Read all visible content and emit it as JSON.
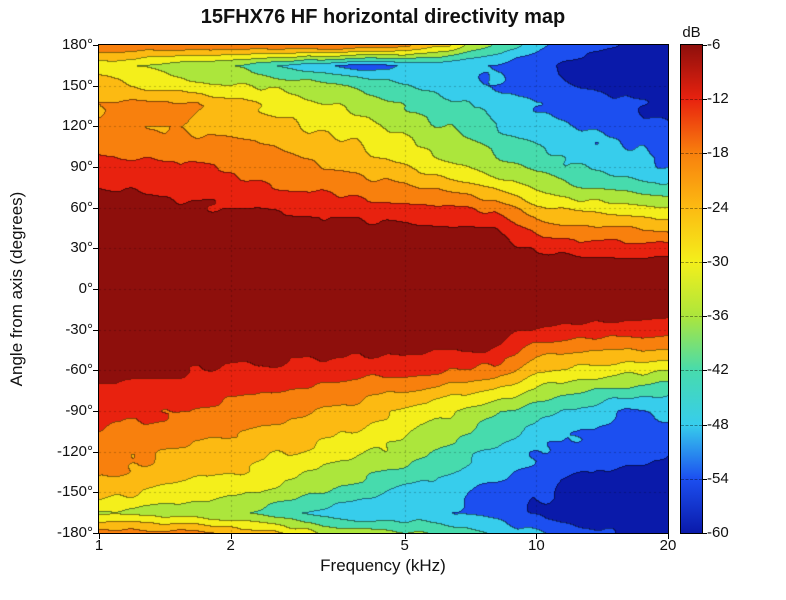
{
  "chart_data": {
    "type": "heatmap",
    "subtype": "filled-contour-directivity-map",
    "title": "15FHX76 HF horizontal directivity map",
    "xlabel": "Frequency (kHz)",
    "ylabel": "Angle from axis (degrees)",
    "colorbar_label": "dB",
    "x_scale": "log",
    "xlim_khz": [
      1,
      20
    ],
    "x_tick_values": [
      1,
      2,
      5,
      10,
      20
    ],
    "x_tick_labels": [
      "1",
      "2",
      "5",
      "10",
      "20"
    ],
    "ylim_deg": [
      -180,
      180
    ],
    "y_tick_values": [
      180,
      150,
      120,
      90,
      60,
      30,
      0,
      -30,
      -60,
      -90,
      -120,
      -150,
      -180
    ],
    "y_tick_labels": [
      "180°",
      "150°",
      "120°",
      "90°",
      "60°",
      "30°",
      "0°",
      "-30°",
      "-60°",
      "-90°",
      "-120°",
      "-150°",
      "-180°"
    ],
    "colorbar_tick_values": [
      -6,
      -12,
      -18,
      -24,
      -30,
      -36,
      -42,
      -48,
      -54,
      -60
    ],
    "colorbar_tick_labels": [
      "-6",
      "-12",
      "-18",
      "-24",
      "-30",
      "-36",
      "-42",
      "-48",
      "-54",
      "-60"
    ],
    "contour_levels_db": [
      -60,
      -54,
      -48,
      -42,
      -36,
      -30,
      -24,
      -18,
      -12,
      -6
    ],
    "band_colors": [
      "#0a1aaa",
      "#1c4ff0",
      "#37cdec",
      "#47dbad",
      "#ace63c",
      "#f4ef1b",
      "#fcba12",
      "#f8800d",
      "#e8220f",
      "#8e0f0c"
    ],
    "grid_dashed": true,
    "gridline_angles_deg": [
      150,
      120,
      90,
      60,
      30,
      0,
      -30,
      -60,
      -90,
      -120,
      -150
    ],
    "gridline_freqs_khz": [
      2,
      5,
      10
    ],
    "noise_amp_db": 1.3,
    "frequencies_khz": [
      1,
      1.26,
      1.6,
      2,
      2.5,
      3.2,
      4,
      5,
      6.3,
      8,
      10,
      12.5,
      16,
      20
    ],
    "angles_deg": [
      180,
      165,
      150,
      135,
      120,
      105,
      90,
      75,
      60,
      45,
      30,
      15,
      0,
      -15,
      -30,
      -45,
      -60,
      -75,
      -90,
      -105,
      -120,
      -135,
      -150,
      -165,
      -180
    ],
    "attenuation_db_by_frequency": [
      [
        -13.5,
        -27,
        -21,
        -18,
        -16.5,
        -12.5,
        -9.5,
        -6.5,
        -3.5,
        -1.5,
        -0.5,
        0,
        0,
        0,
        -0.5,
        -1.5,
        -4,
        -7,
        -10,
        -13,
        -15.5,
        -17.5,
        -21,
        -31,
        -14
      ],
      [
        -13,
        -30,
        -25,
        -15,
        -17.5,
        -14,
        -10.5,
        -7.5,
        -4,
        -1.5,
        -0.5,
        0,
        0,
        0,
        -0.5,
        -2,
        -4.5,
        -8,
        -11,
        -13.5,
        -17,
        -19.5,
        -24,
        -32,
        -15.5
      ],
      [
        -13.5,
        -34,
        -28,
        -16,
        -18.5,
        -15,
        -11.5,
        -8.5,
        -5,
        -2,
        -0.5,
        0,
        0,
        0,
        -1,
        -2.5,
        -5.5,
        -9,
        -12,
        -15.5,
        -19,
        -22,
        -26,
        -33.5,
        -16
      ],
      [
        -14,
        -36,
        -29,
        -21,
        -19.5,
        -16.5,
        -13,
        -9.5,
        -6,
        -2.5,
        -1,
        0,
        0,
        0,
        -1,
        -3,
        -6.5,
        -10,
        -13.5,
        -17,
        -20.5,
        -23.5,
        -29,
        -35,
        -19
      ],
      [
        -13.5,
        -41,
        -31,
        -25,
        -22,
        -18.5,
        -15,
        -11,
        -7,
        -3,
        -1,
        0,
        0,
        0,
        -1.5,
        -3.5,
        -7.5,
        -11.5,
        -15.5,
        -19.5,
        -23,
        -27,
        -32,
        -39,
        -22
      ],
      [
        -11.5,
        -46,
        -34,
        -28.5,
        -25,
        -21,
        -17.5,
        -13,
        -8,
        -3.5,
        -1.5,
        0,
        0,
        0,
        -1.5,
        -4,
        -8.5,
        -13.5,
        -18,
        -22,
        -26,
        -30.5,
        -36,
        -44,
        -30
      ],
      [
        -12.5,
        -50,
        -38,
        -32,
        -28,
        -24,
        -20,
        -15,
        -9,
        -4,
        -1.5,
        0,
        0,
        0,
        -2,
        -4.5,
        -9.5,
        -15.5,
        -21,
        -25,
        -29,
        -34,
        -39,
        -47,
        -33
      ],
      [
        -16,
        -48,
        -42,
        -36,
        -32,
        -28,
        -24,
        -17,
        -10,
        -4.5,
        -1.5,
        0,
        0,
        0,
        -2,
        -5,
        -10.5,
        -18,
        -25,
        -29.5,
        -33,
        -38,
        -43,
        -46,
        -35
      ],
      [
        -24,
        -47,
        -45,
        -40,
        -36.5,
        -32.5,
        -28.5,
        -20,
        -11.5,
        -5,
        -2,
        0,
        0,
        0,
        -2.5,
        -5.5,
        -12,
        -21,
        -29.5,
        -34,
        -38,
        -41.5,
        -46,
        -48,
        -38
      ],
      [
        -37,
        -48,
        -47.5,
        -44.5,
        -41.5,
        -37.5,
        -33.5,
        -24,
        -13.5,
        -6,
        -2,
        0,
        0,
        0,
        -2.5,
        -6.5,
        -14,
        -25,
        -34.5,
        -39,
        -43,
        -46,
        -50,
        -51,
        -43
      ],
      [
        -46,
        -52,
        -51,
        -48,
        -45.5,
        -42,
        -38,
        -31,
        -23,
        -15,
        -6.5,
        -1,
        0,
        -1,
        -6.5,
        -15,
        -23,
        -32,
        -39.5,
        -44,
        -47.5,
        -50,
        -53,
        -54,
        -48
      ],
      [
        -52,
        -56,
        -54,
        -51,
        -48.5,
        -45.5,
        -42,
        -35,
        -26,
        -17,
        -8,
        -1.5,
        0,
        -1.5,
        -8,
        -17,
        -26,
        -35,
        -43,
        -47.5,
        -50.5,
        -53,
        -56,
        -57,
        -52
      ],
      [
        -55,
        -58,
        -56,
        -53.5,
        -51,
        -48,
        -45,
        -38,
        -28,
        -18,
        -8.5,
        -2,
        0,
        -2,
        -8.5,
        -18,
        -28,
        -38,
        -50,
        -50.5,
        -53,
        -55.5,
        -57.5,
        -58,
        -55
      ],
      [
        -57,
        -59,
        -57.5,
        -55,
        -53,
        -50.5,
        -48,
        -41,
        -30,
        -19,
        -9,
        -2.5,
        0,
        -2.5,
        -9,
        -19,
        -30,
        -41,
        -46.5,
        -50,
        -53.5,
        -57,
        -58.5,
        -59,
        -57
      ]
    ]
  }
}
